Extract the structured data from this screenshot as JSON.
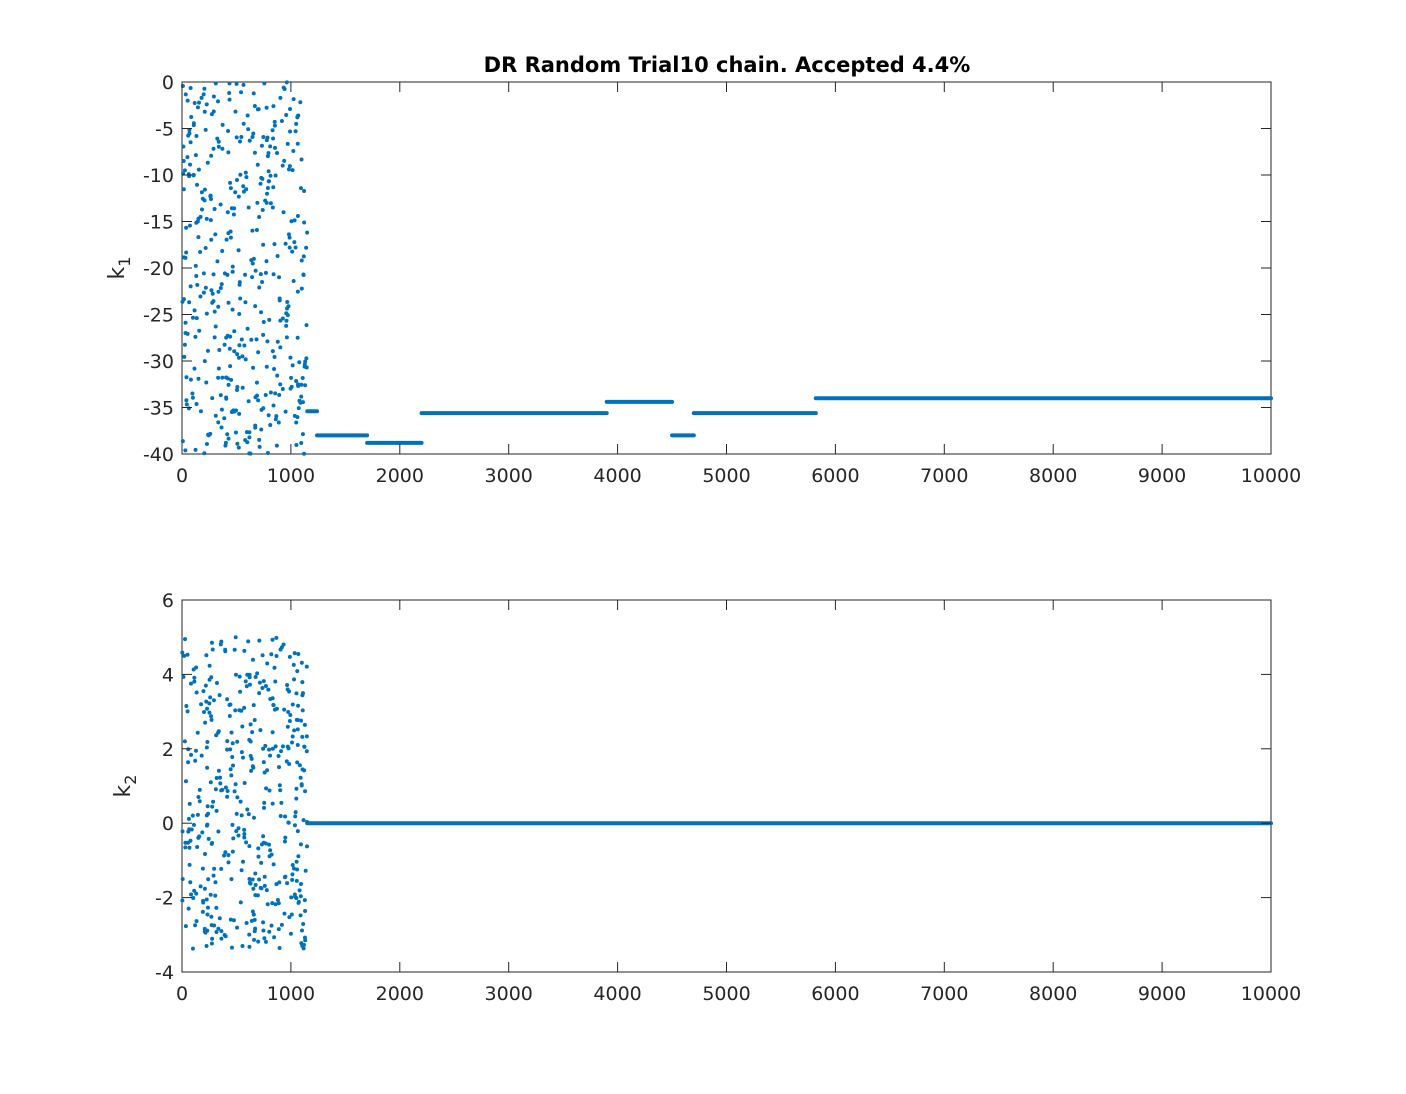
{
  "chart_data": [
    {
      "type": "scatter",
      "title": "DR Random Trial10 chain. Accepted 4.4%",
      "ylabel": "k",
      "ylabel_subscript": "1",
      "xlabel": "",
      "xlim": [
        0,
        10000
      ],
      "ylim": [
        -40,
        0
      ],
      "xticks": [
        "0",
        "1000",
        "2000",
        "3000",
        "4000",
        "5000",
        "6000",
        "7000",
        "8000",
        "9000",
        "10000"
      ],
      "yticks": [
        "0",
        "-5",
        "-10",
        "-15",
        "-20",
        "-25",
        "-30",
        "-35",
        "-40"
      ],
      "color": "#0072BD",
      "burnin": {
        "x_range": [
          0,
          1150
        ],
        "y_range": [
          -40,
          0
        ],
        "seed": 7,
        "count": 430
      },
      "segments": [
        {
          "x0": 1150,
          "x1": 1240,
          "y": -35.4
        },
        {
          "x0": 1240,
          "x1": 1700,
          "y": -38.0
        },
        {
          "x0": 1700,
          "x1": 2200,
          "y": -38.8
        },
        {
          "x0": 2200,
          "x1": 3900,
          "y": -35.6
        },
        {
          "x0": 3900,
          "x1": 4500,
          "y": -34.4
        },
        {
          "x0": 4500,
          "x1": 4700,
          "y": -38.0
        },
        {
          "x0": 4700,
          "x1": 5820,
          "y": -35.6
        },
        {
          "x0": 5820,
          "x1": 10000,
          "y": -34.0
        }
      ]
    },
    {
      "type": "scatter",
      "title": "",
      "ylabel": "k",
      "ylabel_subscript": "2",
      "xlabel": "",
      "xlim": [
        0,
        10000
      ],
      "ylim": [
        -4,
        6
      ],
      "xticks": [
        "0",
        "1000",
        "2000",
        "3000",
        "4000",
        "5000",
        "6000",
        "7000",
        "8000",
        "9000",
        "10000"
      ],
      "yticks": [
        "6",
        "4",
        "2",
        "0",
        "-2",
        "-4"
      ],
      "color": "#0072BD",
      "burnin": {
        "x_range": [
          0,
          1150
        ],
        "y_range": [
          -3.4,
          5.0
        ],
        "seed": 13,
        "count": 430
      },
      "segments": [
        {
          "x0": 1150,
          "x1": 10000,
          "y": 0.0
        }
      ]
    }
  ]
}
